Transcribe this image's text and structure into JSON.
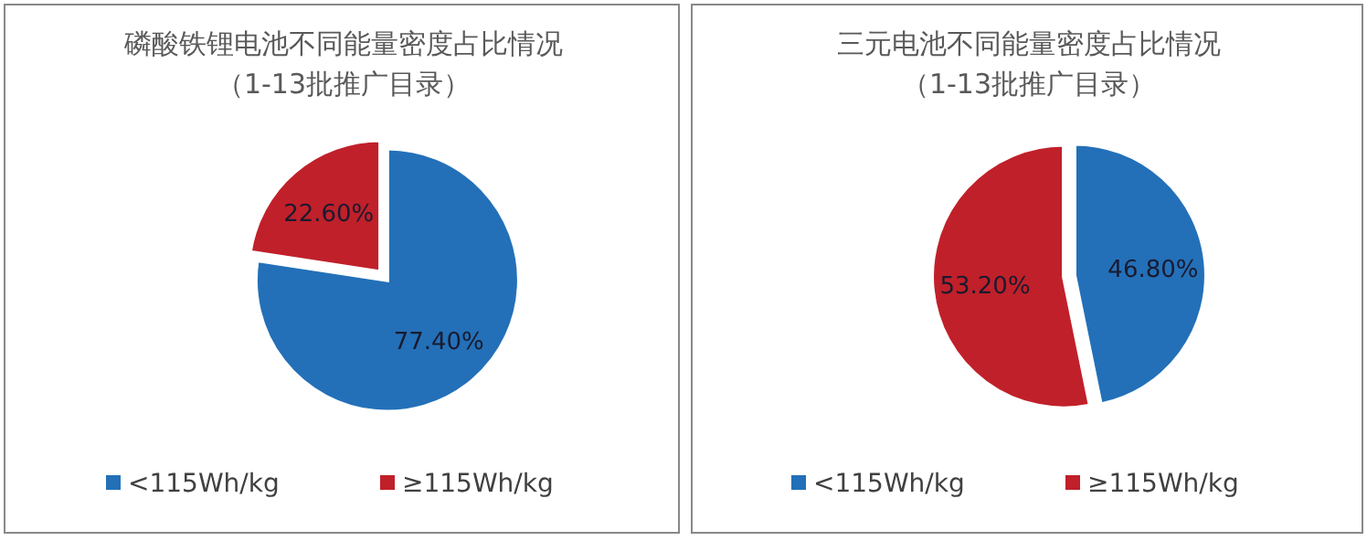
{
  "chart_data": [
    {
      "type": "pie",
      "title": "磷酸铁锂电池不同能量密度占比情况",
      "subtitle": "（1-13批推广目录）",
      "categories": [
        "<115Wh/kg",
        "≥115Wh/kg"
      ],
      "values": [
        77.4,
        22.6
      ],
      "colors": [
        "#2370b8",
        "#c0202a"
      ],
      "value_labels": [
        "77.40%",
        "22.60%"
      ],
      "legend": "bottom"
    },
    {
      "type": "pie",
      "title": "三元电池不同能量密度占比情况",
      "subtitle": "（1-13批推广目录）",
      "categories": [
        "<115Wh/kg",
        "≥115Wh/kg"
      ],
      "values": [
        46.8,
        53.2
      ],
      "colors": [
        "#2370b8",
        "#c0202a"
      ],
      "value_labels": [
        "46.80%",
        "53.20%"
      ],
      "legend": "bottom"
    }
  ]
}
